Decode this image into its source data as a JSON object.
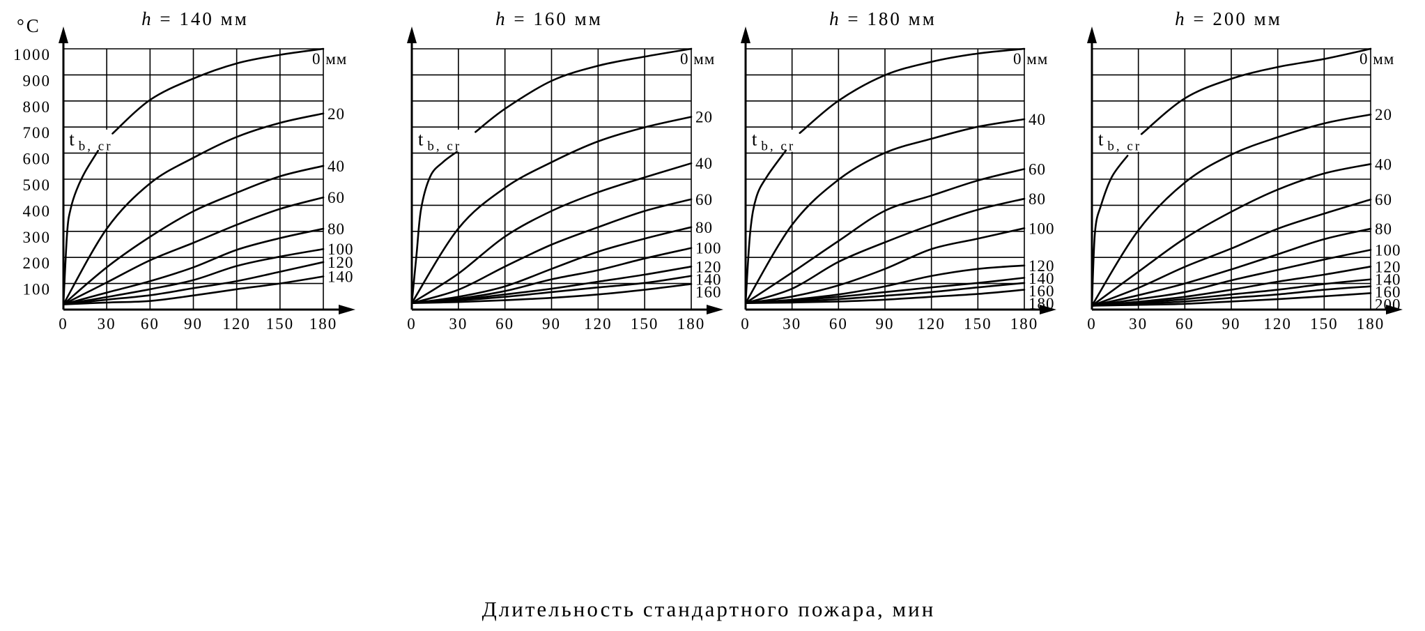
{
  "figure": {
    "y_unit": "°C",
    "x_label": "Длительность стандартного пожара, мин",
    "critical_label": {
      "main": "t",
      "sub": "b, cr"
    }
  },
  "chart_data": [
    {
      "type": "line",
      "title": "h = 140 мм",
      "xlim": [
        0,
        180
      ],
      "ylim": [
        0,
        1000
      ],
      "x_ticks": [
        0,
        30,
        60,
        90,
        120,
        150,
        180
      ],
      "y_ticks": [
        100,
        200,
        300,
        400,
        500,
        600,
        700,
        800,
        900,
        1000
      ],
      "grid": true,
      "critical_curve": {
        "x": [
          0,
          2.6,
          5,
          9,
          15,
          24
        ],
        "y": [
          20,
          296,
          386,
          457,
          528,
          609
        ]
      },
      "series": [
        {
          "name": "0 мм",
          "x": [
            34,
            60,
            90,
            120,
            150,
            180
          ],
          "y": [
            675,
            804,
            886,
            944,
            977,
            1000
          ]
        },
        {
          "name": "20",
          "x": [
            0,
            30,
            60,
            90,
            120,
            150,
            180
          ],
          "y": [
            20,
            310,
            484,
            582,
            662,
            716,
            752
          ]
        },
        {
          "name": "40",
          "x": [
            0,
            30,
            60,
            90,
            120,
            150,
            180
          ],
          "y": [
            20,
            162,
            279,
            377,
            448,
            511,
            551
          ]
        },
        {
          "name": "60",
          "x": [
            0,
            30,
            60,
            90,
            120,
            150,
            180
          ],
          "y": [
            20,
            104,
            189,
            256,
            325,
            386,
            430
          ]
        },
        {
          "name": "80",
          "x": [
            0,
            30,
            60,
            90,
            120,
            150,
            180
          ],
          "y": [
            20,
            65,
            109,
            162,
            229,
            274,
            310
          ]
        },
        {
          "name": "100",
          "x": [
            0,
            30,
            60,
            90,
            120,
            150,
            180
          ],
          "y": [
            20,
            48,
            78,
            113,
            167,
            203,
            232
          ]
        },
        {
          "name": "120",
          "x": [
            0,
            30,
            60,
            90,
            120,
            150,
            180
          ],
          "y": [
            20,
            38,
            55,
            82,
            109,
            145,
            182
          ]
        },
        {
          "name": "140",
          "x": [
            0,
            30,
            60,
            90,
            120,
            150,
            180
          ],
          "y": [
            20,
            27,
            33,
            54,
            78,
            100,
            127
          ]
        }
      ]
    },
    {
      "type": "line",
      "title": "h = 160 мм",
      "xlim": [
        0,
        180
      ],
      "ylim": [
        0,
        1000
      ],
      "x_ticks": [
        0,
        30,
        60,
        90,
        120,
        150,
        180
      ],
      "grid": true,
      "critical_curve": {
        "x": [
          0,
          3,
          6,
          12,
          20,
          29
        ],
        "y": [
          25,
          209,
          387,
          512,
          565,
          605
        ]
      },
      "series": [
        {
          "name": "0 мм",
          "x": [
            41,
            60,
            90,
            120,
            150,
            180
          ],
          "y": [
            681,
            770,
            877,
            935,
            970,
            1000
          ]
        },
        {
          "name": "20",
          "x": [
            0,
            30,
            60,
            90,
            120,
            150,
            180
          ],
          "y": [
            25,
            311,
            467,
            565,
            645,
            699,
            739
          ]
        },
        {
          "name": "40",
          "x": [
            0,
            30,
            60,
            90,
            120,
            150,
            180
          ],
          "y": [
            25,
            138,
            280,
            378,
            450,
            507,
            561
          ]
        },
        {
          "name": "60",
          "x": [
            0,
            30,
            60,
            90,
            120,
            150,
            180
          ],
          "y": [
            25,
            76,
            165,
            249,
            316,
            378,
            423
          ]
        },
        {
          "name": "80",
          "x": [
            0,
            30,
            60,
            90,
            120,
            150,
            180
          ],
          "y": [
            25,
            49,
            89,
            156,
            222,
            272,
            316
          ]
        },
        {
          "name": "100",
          "x": [
            0,
            30,
            60,
            90,
            120,
            150,
            180
          ],
          "y": [
            25,
            42,
            71,
            116,
            151,
            196,
            236
          ]
        },
        {
          "name": "120",
          "x": [
            0,
            30,
            60,
            90,
            120,
            150,
            180
          ],
          "y": [
            25,
            38,
            58,
            80,
            107,
            134,
            165
          ]
        },
        {
          "name": "140",
          "x": [
            0,
            30,
            60,
            90,
            120,
            150,
            180
          ],
          "y": [
            25,
            35,
            49,
            67,
            85,
            102,
            129
          ]
        },
        {
          "name": "160",
          "x": [
            0,
            30,
            60,
            90,
            120,
            150,
            180
          ],
          "y": [
            25,
            29,
            36,
            45,
            58,
            76,
            98
          ]
        }
      ]
    },
    {
      "type": "line",
      "title": "h = 180 мм",
      "xlim": [
        0,
        180
      ],
      "ylim": [
        0,
        1000
      ],
      "x_ticks": [
        0,
        30,
        60,
        90,
        120,
        150,
        180
      ],
      "grid": true,
      "critical_curve": {
        "x": [
          0,
          3,
          7,
          14,
          26
        ],
        "y": [
          25,
          298,
          432,
          512,
          610
        ]
      },
      "series": [
        {
          "name": "0 мм",
          "x": [
            35,
            60,
            90,
            120,
            150,
            180
          ],
          "y": [
            677,
            801,
            899,
            950,
            982,
            1000
          ]
        },
        {
          "name": "40",
          "x": [
            0,
            30,
            60,
            90,
            120,
            150,
            180
          ],
          "y": [
            25,
            325,
            498,
            601,
            655,
            701,
            730
          ]
        },
        {
          "name": "60",
          "x": [
            0,
            30,
            60,
            90,
            120,
            150,
            180
          ],
          "y": [
            25,
            142,
            263,
            379,
            437,
            495,
            539
          ]
        },
        {
          "name": "80",
          "x": [
            0,
            30,
            60,
            90,
            120,
            150,
            180
          ],
          "y": [
            25,
            80,
            183,
            258,
            325,
            383,
            425
          ]
        },
        {
          "name": "100",
          "x": [
            0,
            30,
            60,
            90,
            120,
            150,
            180
          ],
          "y": [
            25,
            50,
            93,
            156,
            232,
            272,
            312
          ]
        },
        {
          "name": "120",
          "x": [
            0,
            30,
            60,
            90,
            120,
            150,
            180
          ],
          "y": [
            25,
            38,
            58,
            89,
            129,
            156,
            169
          ]
        },
        {
          "name": "140",
          "x": [
            0,
            30,
            60,
            90,
            120,
            150,
            180
          ],
          "y": [
            25,
            35,
            49,
            67,
            85,
            102,
            122
          ]
        },
        {
          "name": "160",
          "x": [
            0,
            30,
            60,
            90,
            120,
            150,
            180
          ],
          "y": [
            25,
            31,
            40,
            53,
            67,
            85,
            102
          ]
        },
        {
          "name": "180",
          "x": [
            0,
            30,
            60,
            90,
            120,
            150,
            180
          ],
          "y": [
            25,
            27,
            31,
            38,
            49,
            60,
            76
          ]
        }
      ]
    },
    {
      "type": "line",
      "title": "h = 200 мм",
      "xlim": [
        0,
        180
      ],
      "ylim": [
        0,
        1000
      ],
      "x_ticks": [
        0,
        30,
        60,
        90,
        120,
        150,
        180
      ],
      "grid": true,
      "critical_curve": {
        "x": [
          0,
          2,
          6,
          13,
          23
        ],
        "y": [
          15,
          298,
          402,
          510,
          590
        ]
      },
      "series": [
        {
          "name": "0 мм",
          "x": [
            32,
            60,
            90,
            120,
            150,
            180
          ],
          "y": [
            673,
            810,
            885,
            930,
            961,
            1000
          ]
        },
        {
          "name": "20",
          "x": [
            0,
            30,
            60,
            90,
            120,
            150,
            180
          ],
          "y": [
            15,
            304,
            487,
            594,
            661,
            714,
            748
          ]
        },
        {
          "name": "40",
          "x": [
            0,
            30,
            60,
            90,
            120,
            150,
            180
          ],
          "y": [
            15,
            145,
            273,
            375,
            460,
            522,
            558
          ]
        },
        {
          "name": "60",
          "x": [
            0,
            30,
            60,
            90,
            120,
            150,
            180
          ],
          "y": [
            15,
            83,
            164,
            234,
            310,
            368,
            422
          ]
        },
        {
          "name": "80",
          "x": [
            0,
            30,
            60,
            90,
            120,
            150,
            180
          ],
          "y": [
            15,
            55,
            100,
            154,
            212,
            270,
            310
          ]
        },
        {
          "name": "100",
          "x": [
            0,
            30,
            60,
            90,
            120,
            150,
            180
          ],
          "y": [
            15,
            40,
            67,
            112,
            152,
            192,
            229
          ]
        },
        {
          "name": "120",
          "x": [
            0,
            30,
            60,
            90,
            120,
            150,
            180
          ],
          "y": [
            15,
            30,
            49,
            76,
            107,
            134,
            165
          ]
        },
        {
          "name": "140",
          "x": [
            0,
            30,
            60,
            90,
            120,
            150,
            180
          ],
          "y": [
            15,
            26,
            40,
            58,
            76,
            98,
            116
          ]
        },
        {
          "name": "160",
          "x": [
            0,
            30,
            60,
            90,
            120,
            150,
            180
          ],
          "y": [
            15,
            22,
            31,
            45,
            58,
            76,
            89
          ]
        },
        {
          "name": "200",
          "x": [
            0,
            30,
            60,
            90,
            120,
            150,
            180
          ],
          "y": [
            15,
            18,
            22,
            31,
            40,
            51,
            63
          ]
        }
      ]
    }
  ]
}
